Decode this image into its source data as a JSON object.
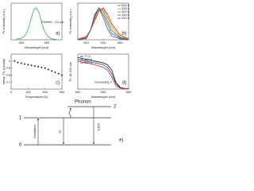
{
  "chart_data": [
    {
      "type": "line",
      "label": "a)",
      "annotation": "FWHM ~ 22 nm",
      "xlabel": "Wavelength (nm)",
      "ylabel": "PL Intensity (a.u.)",
      "x": [
        490,
        500,
        505,
        510,
        515,
        520,
        525,
        530,
        535,
        540,
        545,
        550,
        555,
        560,
        570
      ],
      "series": [
        {
          "color": "#2db34a",
          "values": [
            0.02,
            0.05,
            0.1,
            0.2,
            0.4,
            0.7,
            0.95,
            1.0,
            0.85,
            0.55,
            0.3,
            0.15,
            0.07,
            0.03,
            0.01
          ]
        }
      ],
      "xlim": [
        480,
        580
      ],
      "xticks": [
        500,
        550
      ],
      "ylim": [
        0,
        1.15
      ]
    },
    {
      "type": "line",
      "label": "b)",
      "xlabel": "Wavelength (nm)",
      "ylabel": "PL Intensity (a.u.)",
      "x": [
        500,
        510,
        515,
        520,
        525,
        530,
        535,
        540,
        550,
        560
      ],
      "series": [
        {
          "name": "300 K",
          "color": "#e31a1c",
          "values": [
            0.02,
            0.1,
            0.3,
            0.6,
            0.9,
            1.0,
            0.8,
            0.5,
            0.15,
            0.03
          ]
        },
        {
          "name": "250 K",
          "color": "#ff7f00",
          "values": [
            0.01,
            0.08,
            0.3,
            0.65,
            0.95,
            0.95,
            0.7,
            0.4,
            0.1,
            0.02
          ]
        },
        {
          "name": "200 K",
          "color": "#33a02c",
          "values": [
            0.01,
            0.06,
            0.3,
            0.7,
            1.0,
            0.9,
            0.6,
            0.3,
            0.07,
            0.01
          ]
        },
        {
          "name": "150 K",
          "color": "#1f78b4",
          "values": [
            0.01,
            0.05,
            0.3,
            0.75,
            1.0,
            0.8,
            0.5,
            0.2,
            0.05,
            0.01
          ]
        },
        {
          "name": "100 K",
          "color": "#6a3d9a",
          "values": [
            0.0,
            0.04,
            0.3,
            0.8,
            1.0,
            0.7,
            0.35,
            0.12,
            0.03,
            0.0
          ]
        }
      ],
      "xlim": [
        500,
        560
      ],
      "xticks": [
        510,
        530,
        550
      ],
      "ylim": [
        0,
        1.15
      ]
    },
    {
      "type": "scatter",
      "label": "c)",
      "xlabel": "Temperature (K)",
      "ylabel": "Integr. PL (counts)",
      "x": [
        20,
        40,
        60,
        80,
        100,
        120,
        140,
        160,
        180,
        200,
        220,
        240,
        260,
        280,
        300
      ],
      "series": [
        {
          "color": "#222222",
          "values": [
            1.0,
            0.98,
            0.97,
            0.96,
            0.95,
            0.94,
            0.93,
            0.92,
            0.91,
            0.9,
            0.88,
            0.86,
            0.84,
            0.82,
            0.8
          ]
        }
      ],
      "xlim": [
        0,
        300
      ],
      "xticks": [
        0,
        100,
        200,
        300
      ],
      "ylim": [
        0.6,
        1.1
      ],
      "yticks": [
        0.7,
        0.8,
        0.9,
        1.0
      ]
    },
    {
      "type": "line",
      "label": "d)",
      "annotation": "Increasing T",
      "xlabel": "Wavelength (nm)",
      "ylabel": "PL @ 532 nm",
      "x": [
        500,
        510,
        520,
        530,
        535,
        540,
        545,
        550,
        555,
        560
      ],
      "series": [
        {
          "name": "77 K",
          "color": "#111111",
          "values": [
            0.9,
            0.85,
            0.8,
            0.75,
            0.7,
            0.55,
            0.2,
            0.05,
            0.02,
            0.01
          ]
        },
        {
          "name": "150 K",
          "color": "#1f4fb4",
          "values": [
            0.85,
            0.8,
            0.75,
            0.7,
            0.62,
            0.45,
            0.15,
            0.04,
            0.02,
            0.01
          ]
        },
        {
          "name": "300 K",
          "color": "#d62728",
          "values": [
            0.8,
            0.75,
            0.7,
            0.62,
            0.55,
            0.35,
            0.1,
            0.03,
            0.01,
            0.01
          ]
        }
      ],
      "xlim": [
        500,
        560
      ],
      "xticks": [
        500,
        530,
        560
      ],
      "ylim": [
        0,
        1
      ]
    }
  ],
  "diagram": {
    "label": "e)",
    "level0": "0",
    "level1": "1",
    "level2": "2",
    "phonon": "Phonon",
    "excitation": "Excitation",
    "pl": "PL",
    "aspl": "ASPL"
  }
}
